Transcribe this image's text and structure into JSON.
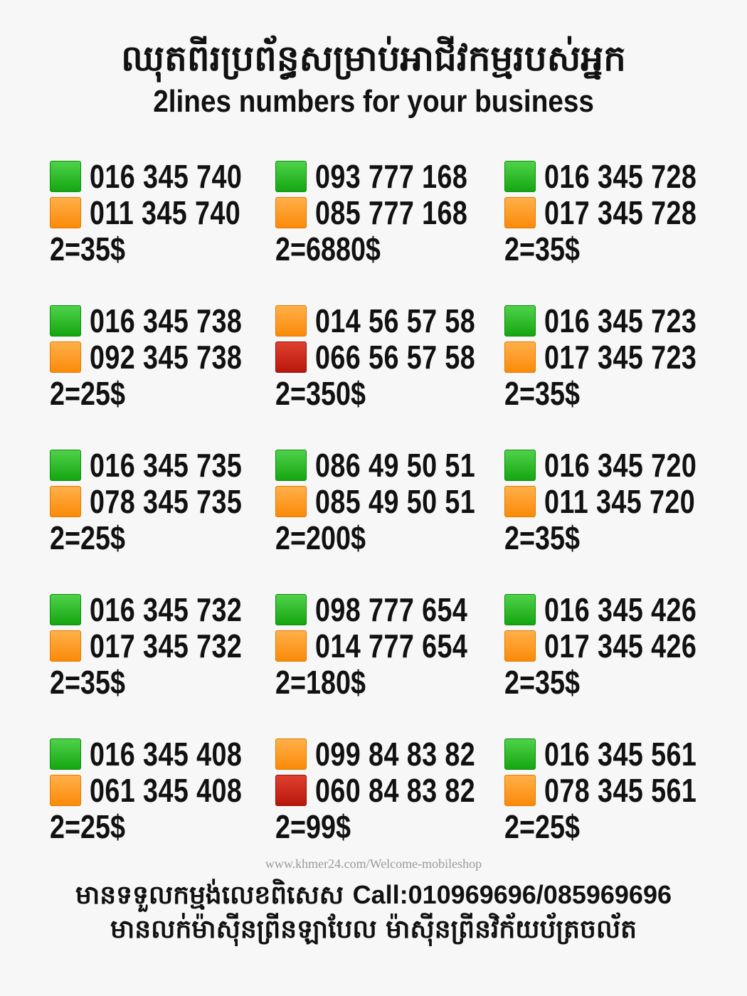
{
  "header": {
    "title_kh": "ឈុតពីរប្រព័ន្ធសម្រាប់អាជីវកម្មរបស់អ្នក",
    "title_en": "2lines numbers for your business"
  },
  "colors": {
    "green": "#14a611",
    "orange": "#fb8a08",
    "red": "#b8170c"
  },
  "cards": [
    {
      "lines": [
        {
          "number": "016 345 740",
          "color": "green"
        },
        {
          "number": "011 345 740",
          "color": "orange"
        }
      ],
      "price": "2=35$"
    },
    {
      "lines": [
        {
          "number": "093 777 168",
          "color": "green"
        },
        {
          "number": "085 777 168",
          "color": "orange"
        }
      ],
      "price": "2=6880$"
    },
    {
      "lines": [
        {
          "number": "016 345 728",
          "color": "green"
        },
        {
          "number": "017 345 728",
          "color": "orange"
        }
      ],
      "price": "2=35$"
    },
    {
      "lines": [
        {
          "number": "016 345 738",
          "color": "green"
        },
        {
          "number": "092 345 738",
          "color": "orange"
        }
      ],
      "price": "2=25$"
    },
    {
      "lines": [
        {
          "number": "014 56 57 58",
          "color": "orange"
        },
        {
          "number": "066 56 57 58",
          "color": "red"
        }
      ],
      "price": "2=350$"
    },
    {
      "lines": [
        {
          "number": "016 345 723",
          "color": "green"
        },
        {
          "number": "017 345 723",
          "color": "orange"
        }
      ],
      "price": "2=35$"
    },
    {
      "lines": [
        {
          "number": "016 345 735",
          "color": "green"
        },
        {
          "number": "078 345 735",
          "color": "orange"
        }
      ],
      "price": "2=25$"
    },
    {
      "lines": [
        {
          "number": "086 49 50 51",
          "color": "green"
        },
        {
          "number": "085 49 50 51",
          "color": "orange"
        }
      ],
      "price": "2=200$"
    },
    {
      "lines": [
        {
          "number": "016 345 720",
          "color": "green"
        },
        {
          "number": "011 345 720",
          "color": "orange"
        }
      ],
      "price": "2=35$"
    },
    {
      "lines": [
        {
          "number": "016 345 732",
          "color": "green"
        },
        {
          "number": "017 345 732",
          "color": "orange"
        }
      ],
      "price": "2=35$"
    },
    {
      "lines": [
        {
          "number": "098 777 654",
          "color": "green"
        },
        {
          "number": "014 777 654",
          "color": "orange"
        }
      ],
      "price": "2=180$"
    },
    {
      "lines": [
        {
          "number": "016 345 426",
          "color": "green"
        },
        {
          "number": "017 345 426",
          "color": "orange"
        }
      ],
      "price": "2=35$"
    },
    {
      "lines": [
        {
          "number": "016 345 408",
          "color": "green"
        },
        {
          "number": "061 345 408",
          "color": "orange"
        }
      ],
      "price": "2=25$"
    },
    {
      "lines": [
        {
          "number": "099 84 83 82",
          "color": "orange"
        },
        {
          "number": "060 84 83 82",
          "color": "red"
        }
      ],
      "price": "2=99$"
    },
    {
      "lines": [
        {
          "number": "016 345 561",
          "color": "green"
        },
        {
          "number": "078 345 561",
          "color": "orange"
        }
      ],
      "price": "2=25$"
    }
  ],
  "watermark": "www.khmer24.com/Welcome-mobileshop",
  "footer": {
    "line1_kh": "មានទទួលកម្មង់លេខពិសេស",
    "line1_call": "Call:010969696/085969696",
    "line2_kh": "មានលក់ម៉ាស៊ីនព្រីនឡាបែល ម៉ាស៊ីនព្រីនវិក័យប័ត្រចល័ត"
  }
}
